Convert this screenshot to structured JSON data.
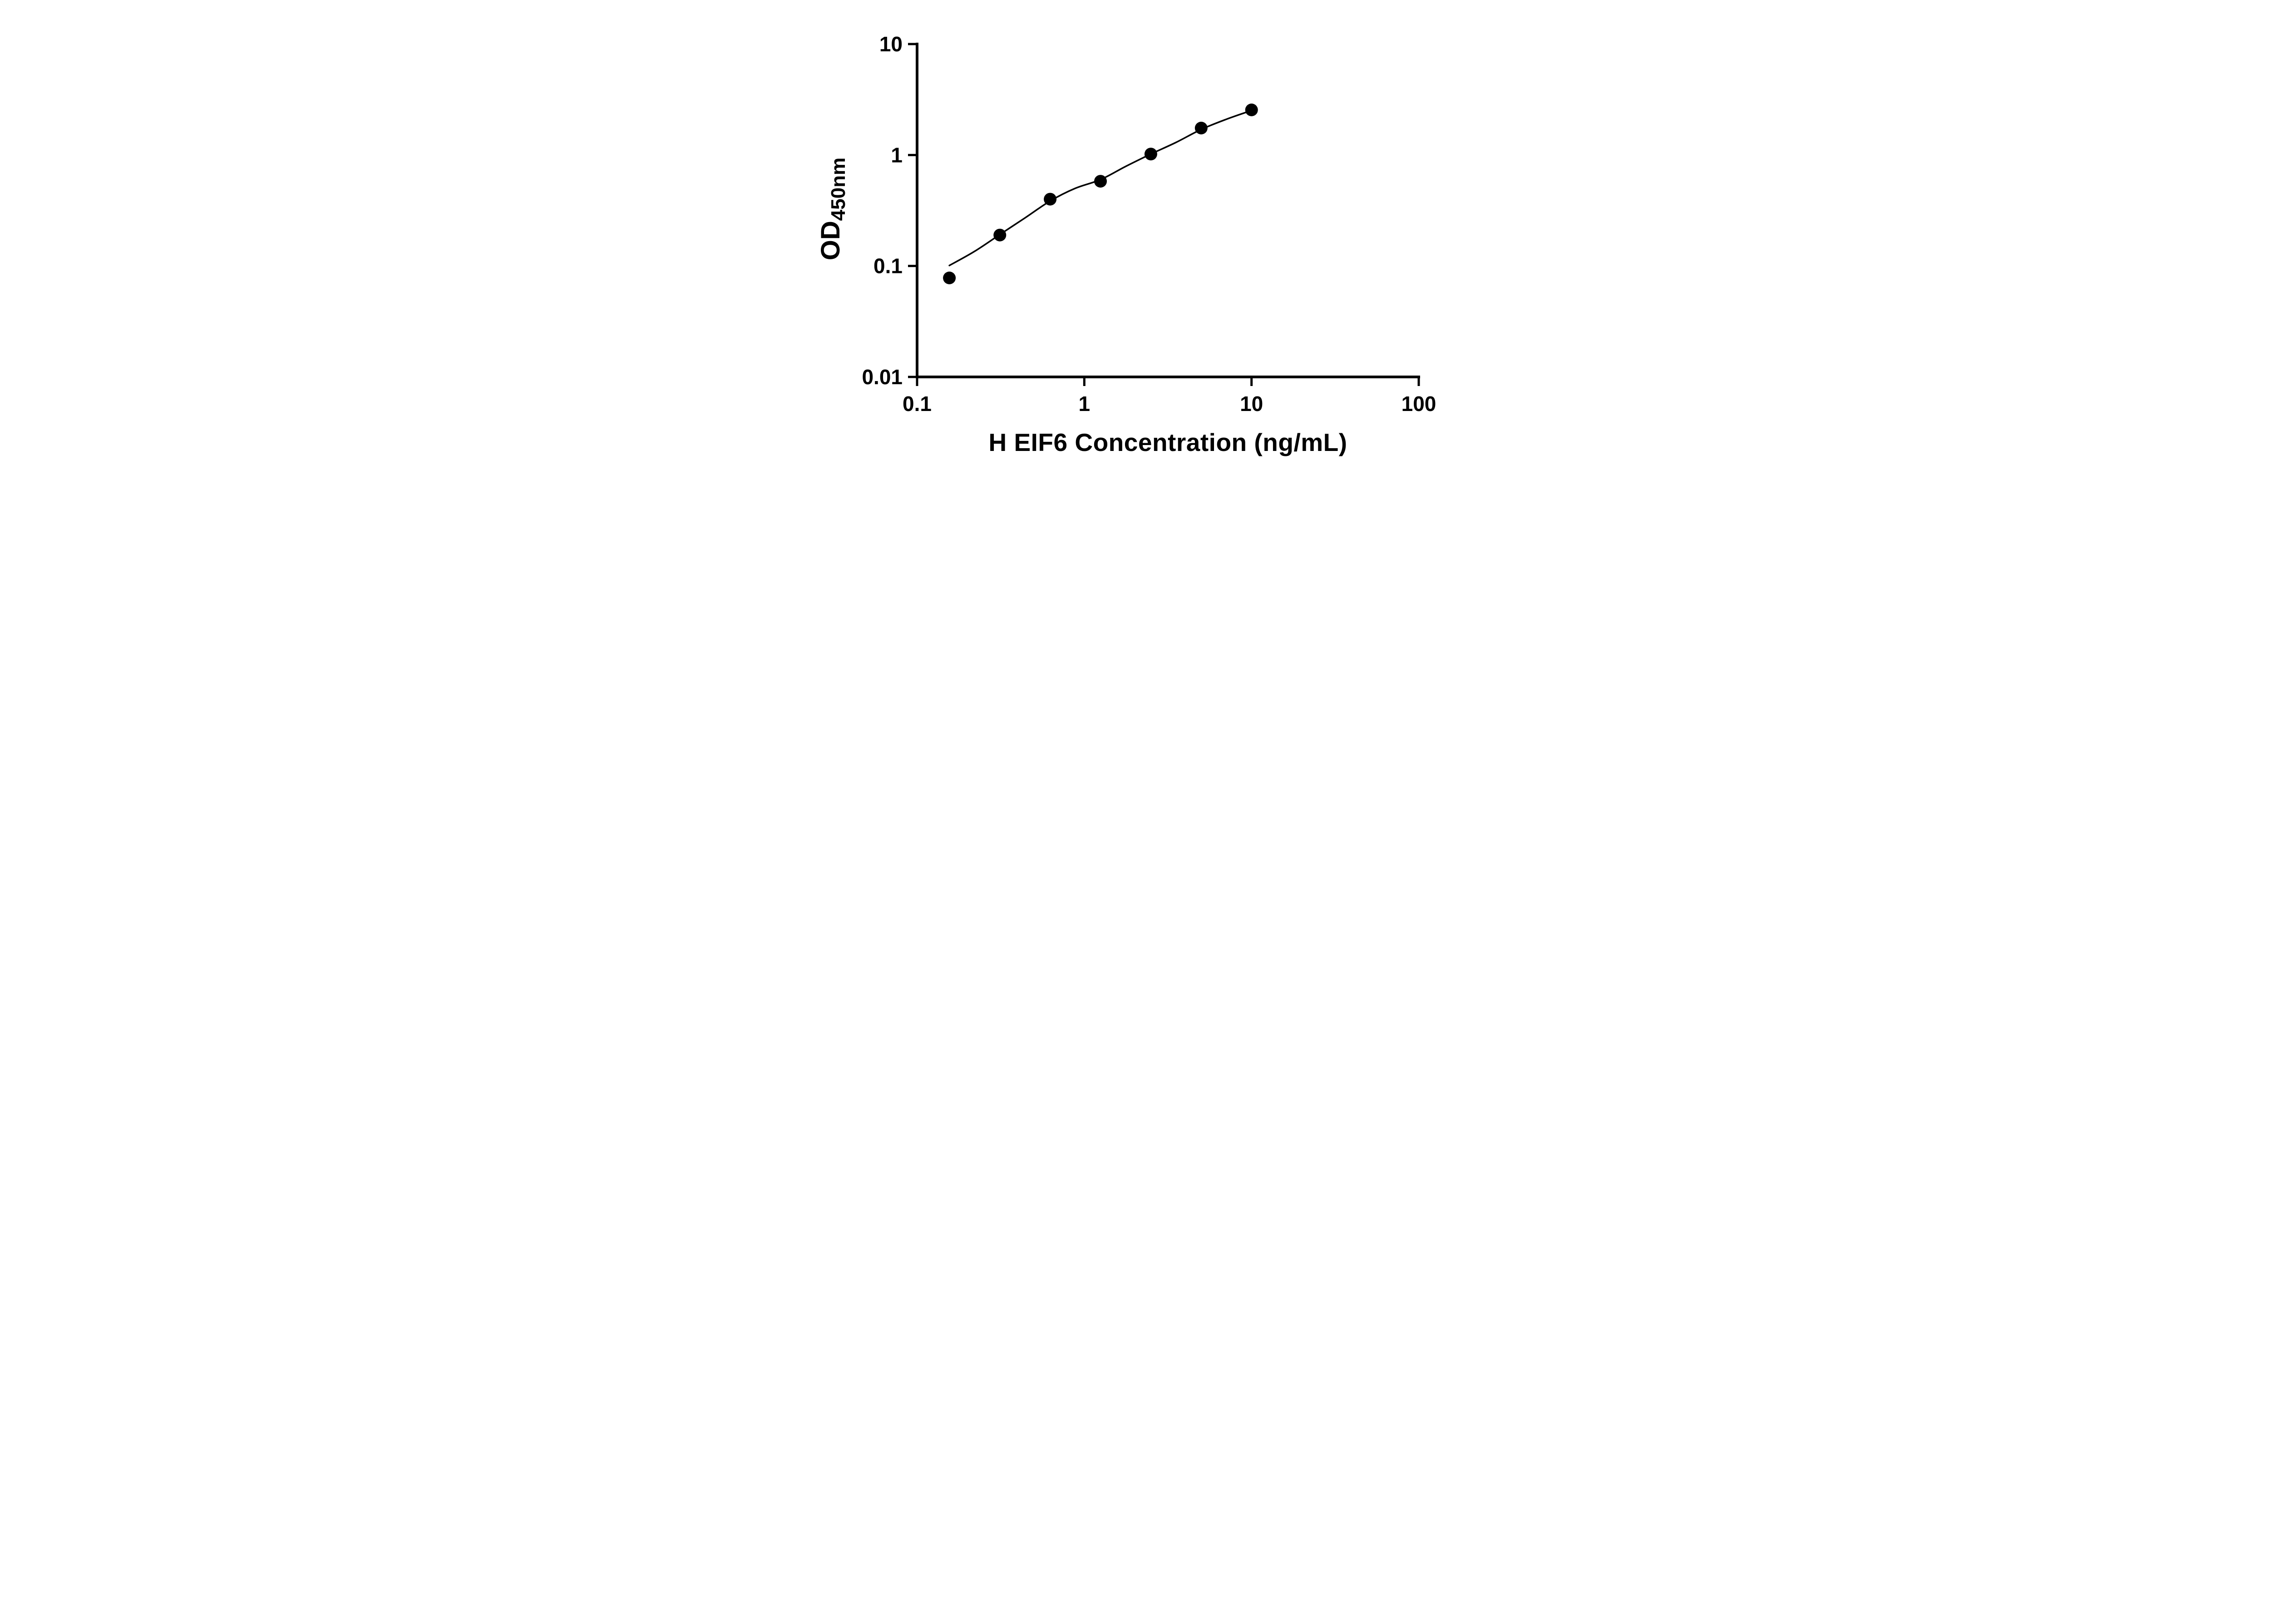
{
  "figure": {
    "background": "#ffffff"
  },
  "chart_data": {
    "type": "scatter",
    "title": "",
    "xlabel": "H EIF6 Concentration (ng/mL)",
    "ylabel": "OD450nm",
    "ylabel_main": "OD",
    "ylabel_sub": "450nm",
    "x_scale": "log",
    "y_scale": "log",
    "xlim": [
      0.1,
      100
    ],
    "ylim": [
      0.01,
      10
    ],
    "grid": false,
    "legend": "none",
    "axis_color": "#000000",
    "point_radius": 14,
    "line_width": 3.5,
    "x_ticks": [
      "0.1",
      "1",
      "10",
      "100"
    ],
    "x_tick_values": [
      0.1,
      1,
      10,
      100
    ],
    "y_ticks": [
      "10",
      "1",
      "0.1",
      "0.01"
    ],
    "y_tick_values": [
      10,
      1,
      0.1,
      0.01
    ],
    "series": [
      {
        "name": "standard curve points",
        "type": "scatter",
        "marker": "filled-circle",
        "color": "#000000",
        "x": [
          0.156,
          0.3125,
          0.625,
          1.25,
          2.5,
          5,
          10
        ],
        "y": [
          0.078,
          0.19,
          0.4,
          0.58,
          1.02,
          1.75,
          2.55
        ]
      },
      {
        "name": "fit curve",
        "type": "line",
        "color": "#000000",
        "x": [
          0.156,
          0.22,
          0.3125,
          0.44,
          0.625,
          0.88,
          1.25,
          1.77,
          2.5,
          3.54,
          5,
          7.07,
          10
        ],
        "y": [
          0.101,
          0.135,
          0.192,
          0.27,
          0.385,
          0.5,
          0.6,
          0.79,
          1.02,
          1.3,
          1.7,
          2.1,
          2.52
        ]
      }
    ]
  }
}
